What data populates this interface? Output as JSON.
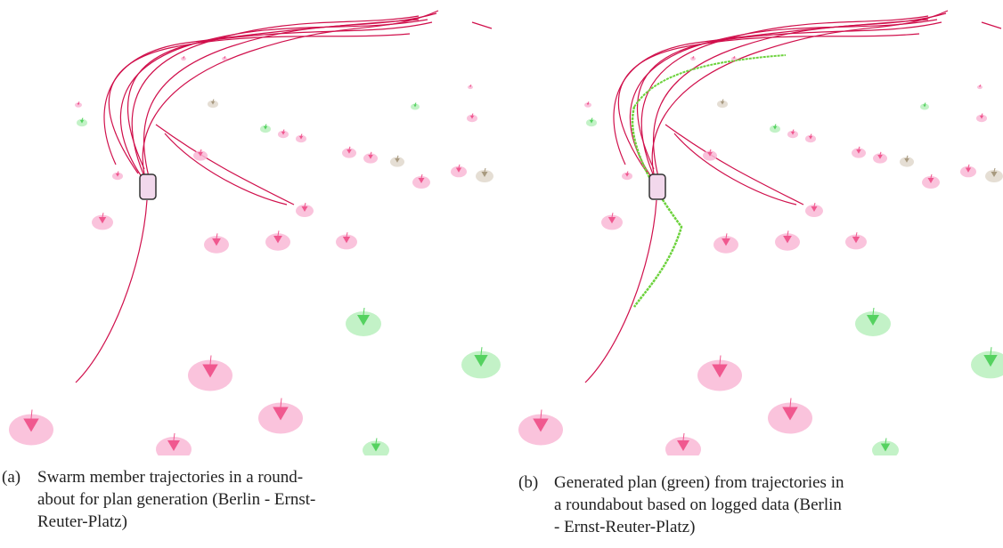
{
  "figures": [
    {
      "label": "(a)",
      "caption_lines": [
        "Swarm member trajectories in a round-",
        "about for plan generation (Berlin - Ernst-",
        "Reuter-Platz)"
      ]
    },
    {
      "label": "(b)",
      "caption_lines": [
        "Generated plan (green) from trajectories in",
        "a roundabout based on logged data (Berlin",
        "- Ernst-Reuter-Platz)"
      ]
    }
  ]
}
